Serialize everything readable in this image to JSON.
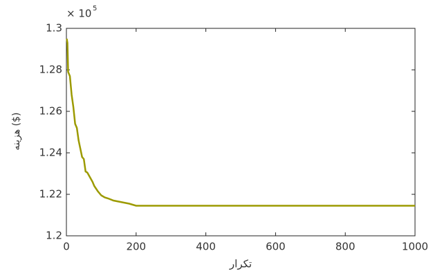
{
  "chart_data": {
    "type": "line",
    "xlabel": "تکرار",
    "ylabel": "هزینه ($)",
    "multiplier": "× 10",
    "exponent": "5",
    "x": [
      1,
      3,
      5,
      10,
      15,
      20,
      25,
      30,
      35,
      40,
      45,
      50,
      55,
      60,
      65,
      70,
      75,
      80,
      90,
      100,
      110,
      120,
      135,
      150,
      165,
      180,
      190,
      200,
      300,
      400,
      500,
      600,
      700,
      800,
      900,
      1000
    ],
    "series": [
      {
        "name": "cost",
        "color": "#9c9a00",
        "values": [
          1.295,
          1.293,
          1.279,
          1.277,
          1.268,
          1.262,
          1.254,
          1.252,
          1.246,
          1.242,
          1.238,
          1.237,
          1.231,
          1.2305,
          1.229,
          1.2275,
          1.226,
          1.224,
          1.2215,
          1.2195,
          1.2185,
          1.218,
          1.217,
          1.2165,
          1.216,
          1.2155,
          1.215,
          1.2145,
          1.2145,
          1.2145,
          1.2145,
          1.2145,
          1.2145,
          1.2145,
          1.2145,
          1.2145
        ]
      }
    ],
    "xlim": [
      0,
      1000
    ],
    "xticks": [
      0,
      200,
      400,
      600,
      800,
      1000
    ],
    "ylim": [
      1.2,
      1.3
    ],
    "yticks": [
      1.2,
      1.22,
      1.24,
      1.26,
      1.28,
      1.3
    ]
  }
}
